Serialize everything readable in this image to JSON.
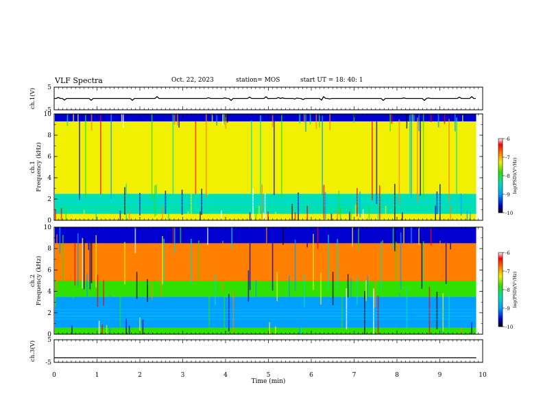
{
  "header": {
    "title": "VLF Spectra",
    "date": "Oct. 22, 2023",
    "station": "station= MOS",
    "start_ut": "start  UT  =   18: 40: 1"
  },
  "chart_data": [
    {
      "type": "line",
      "ylabel": "ch.1(V)",
      "ylim": [
        -5,
        5
      ],
      "y_ticks": [
        "5",
        "-5"
      ],
      "series": [
        {
          "values": [
            0,
            0
          ]
        }
      ],
      "note_values": "Flat trace near 0 V with small intermittent spikes"
    },
    {
      "type": "heatmap",
      "ylabel": "ch.1\nFrequency (kHz)",
      "ylabel_lines": [
        "ch.1",
        "Frequency (kHz)"
      ],
      "ylim": [
        0,
        10
      ],
      "y_ticks": [
        "0",
        "2",
        "4",
        "6",
        "8",
        "10"
      ],
      "colorbar": {
        "label": "log(PSD)(V²/Hz)",
        "ticks": [
          "-6",
          "-7",
          "-8",
          "-9",
          "-10"
        ],
        "range": [
          -10,
          -6
        ]
      },
      "bands": [
        {
          "from": 0,
          "to": 0.6,
          "level": -7.6
        },
        {
          "from": 0.6,
          "to": 2.5,
          "level": -8.3
        },
        {
          "from": 2.5,
          "to": 9.3,
          "level": -7.4
        },
        {
          "from": 9.3,
          "to": 10,
          "level": -9.6
        }
      ]
    },
    {
      "type": "heatmap",
      "ylabel": "ch.2\nFrequency (kHz)",
      "ylabel_lines": [
        "ch.2",
        "Frequency (kHz)"
      ],
      "ylim": [
        0,
        10
      ],
      "y_ticks": [
        "0",
        "2",
        "4",
        "6",
        "8",
        "10"
      ],
      "colorbar": {
        "label": "log(PSD)(V²/Hz)",
        "ticks": [
          "-6",
          "-7",
          "-8",
          "-9",
          "-10"
        ],
        "range": [
          -10,
          -6
        ]
      },
      "bands": [
        {
          "from": 0,
          "to": 0.6,
          "level": -7.8
        },
        {
          "from": 0.6,
          "to": 3.5,
          "level": -8.8
        },
        {
          "from": 3.5,
          "to": 5.0,
          "level": -8.0
        },
        {
          "from": 5.0,
          "to": 8.5,
          "level": -6.8
        },
        {
          "from": 8.5,
          "to": 10,
          "level": -9.4
        }
      ]
    },
    {
      "type": "line",
      "ylabel": "ch.3(V)",
      "ylim": [
        -5,
        5
      ],
      "y_ticks": [
        "5",
        "-5"
      ],
      "series": [
        {
          "values": [
            -3,
            -3
          ]
        }
      ]
    }
  ],
  "xaxis": {
    "label": "Time (min)",
    "range": [
      0,
      10
    ],
    "ticks": [
      "0",
      "1",
      "2",
      "3",
      "4",
      "5",
      "6",
      "7",
      "8",
      "9",
      "10"
    ],
    "data_end": 9.85
  },
  "colors": {
    "scale": [
      "#000000",
      "#0000d0",
      "#00a0ff",
      "#00e0b0",
      "#30e000",
      "#f0f000",
      "#ff8000",
      "#ff0000",
      "#ffffff"
    ]
  }
}
